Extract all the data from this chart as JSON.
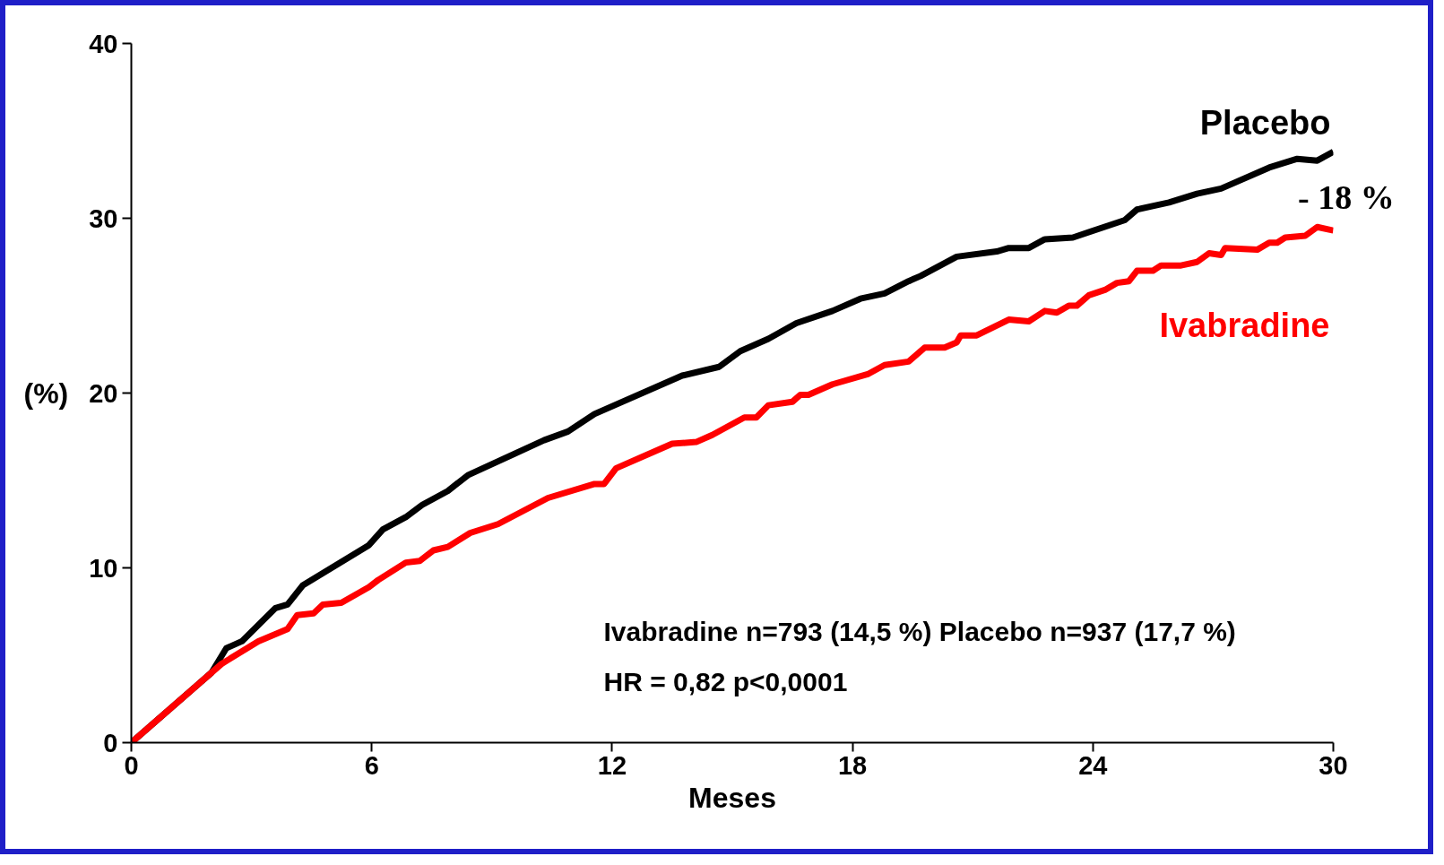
{
  "chart_data": {
    "type": "line",
    "xlabel": "Meses",
    "ylabel": "(%)",
    "xlim": [
      0,
      30
    ],
    "ylim": [
      0,
      40
    ],
    "xticks": [
      0,
      6,
      12,
      18,
      24,
      30
    ],
    "yticks": [
      0,
      10,
      20,
      30,
      40
    ],
    "grid": false,
    "legend": false,
    "marker": "none",
    "line_style": "solid",
    "series": [
      {
        "name": "Placebo",
        "color": "#000000",
        "x": [
          0,
          2.0,
          2.37,
          2.76,
          3.6,
          3.9,
          4.28,
          5.93,
          6.28,
          6.85,
          7.26,
          7.9,
          8.4,
          10.3,
          10.9,
          11.56,
          13.75,
          14.67,
          15.2,
          15.9,
          16.6,
          17.5,
          18.2,
          18.8,
          19.4,
          19.7,
          20.6,
          21.6,
          21.9,
          22.4,
          22.8,
          23.5,
          24.8,
          25.1,
          25.9,
          26.6,
          27.2,
          28.4,
          29.1,
          29.6,
          30.0
        ],
        "values": [
          0,
          4.0,
          5.4,
          5.8,
          7.7,
          7.9,
          9.0,
          11.3,
          12.2,
          12.9,
          13.6,
          14.4,
          15.3,
          17.3,
          17.8,
          18.8,
          21.0,
          21.5,
          22.4,
          23.1,
          24.0,
          24.7,
          25.4,
          25.7,
          26.4,
          26.7,
          27.8,
          28.1,
          28.3,
          28.3,
          28.8,
          28.9,
          29.9,
          30.5,
          30.9,
          31.4,
          31.7,
          32.9,
          33.4,
          33.3,
          33.8
        ]
      },
      {
        "name": "Ivabradine",
        "color": "#ff0000",
        "x": [
          0,
          2.25,
          3.17,
          3.9,
          4.14,
          4.55,
          4.78,
          5.24,
          5.93,
          6.16,
          6.85,
          7.2,
          7.54,
          7.9,
          8.46,
          9.15,
          10.4,
          11.56,
          11.8,
          12.1,
          13.5,
          14.1,
          14.5,
          15.3,
          15.6,
          15.9,
          16.5,
          16.7,
          16.9,
          17.5,
          18.4,
          18.8,
          19.4,
          19.8,
          20.3,
          20.6,
          20.7,
          21.1,
          21.9,
          22.4,
          22.8,
          23.1,
          23.4,
          23.6,
          23.9,
          24.3,
          24.6,
          24.9,
          25.1,
          25.5,
          25.7,
          26.2,
          26.6,
          26.9,
          27.2,
          27.3,
          28.1,
          28.4,
          28.6,
          28.8,
          29.3,
          29.6,
          30.0
        ],
        "values": [
          0,
          4.5,
          5.8,
          6.5,
          7.3,
          7.4,
          7.9,
          8.0,
          8.9,
          9.3,
          10.3,
          10.4,
          11.0,
          11.2,
          12.0,
          12.5,
          14.0,
          14.8,
          14.8,
          15.7,
          17.1,
          17.2,
          17.6,
          18.6,
          18.6,
          19.3,
          19.5,
          19.9,
          19.9,
          20.5,
          21.1,
          21.6,
          21.8,
          22.6,
          22.6,
          22.9,
          23.3,
          23.3,
          24.2,
          24.1,
          24.7,
          24.6,
          25.0,
          25.0,
          25.6,
          25.9,
          26.3,
          26.4,
          27.0,
          27.0,
          27.3,
          27.3,
          27.5,
          28.0,
          27.9,
          28.3,
          28.2,
          28.6,
          28.6,
          28.9,
          29.0,
          29.5,
          29.3
        ]
      }
    ],
    "annotations": [
      "- 18 %",
      "Ivabradine n=793 (14,5 %) Placebo n=937 (17,7 %)",
      "HR = 0,82   p<0,0001"
    ]
  }
}
